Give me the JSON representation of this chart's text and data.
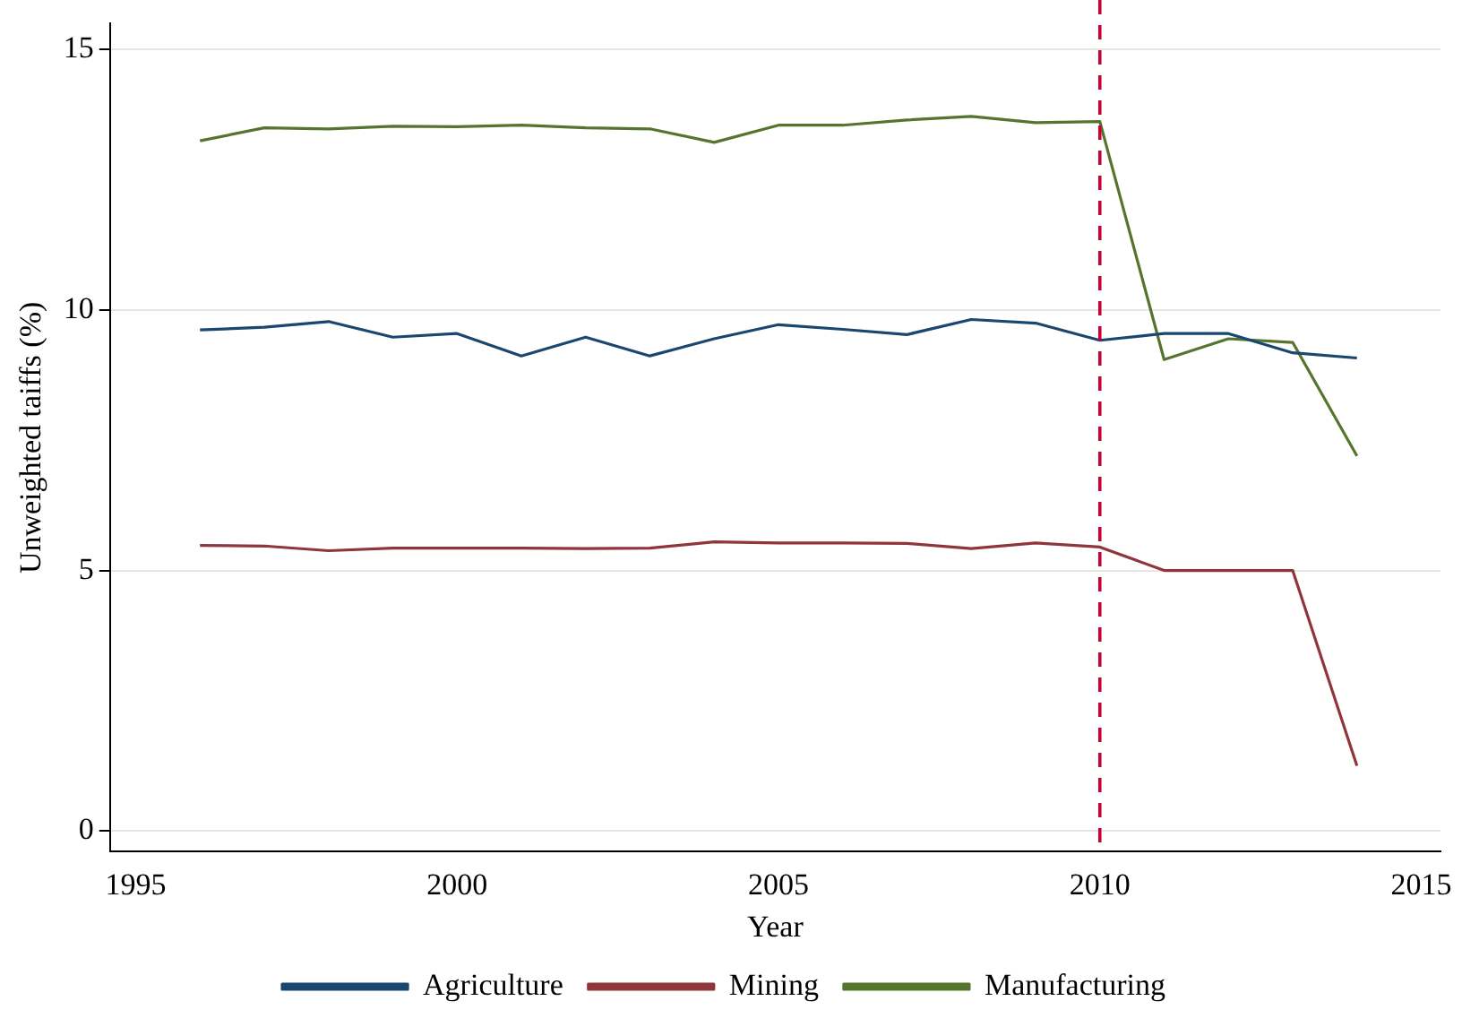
{
  "chart_data": {
    "type": "line",
    "xlabel": "Year",
    "ylabel": "Unweighted taiffs (%)",
    "x": [
      1996,
      1997,
      1998,
      1999,
      2000,
      2001,
      2002,
      2003,
      2004,
      2005,
      2006,
      2007,
      2008,
      2009,
      2010,
      2011,
      2012,
      2013,
      2014
    ],
    "series": [
      {
        "name": "Agriculture",
        "color": "#1a476f",
        "values": [
          9.62,
          9.67,
          9.78,
          9.48,
          9.55,
          9.12,
          9.48,
          9.12,
          9.45,
          9.72,
          9.63,
          9.53,
          9.82,
          9.75,
          9.42,
          9.55,
          9.55,
          9.18,
          9.08
        ]
      },
      {
        "name": "Mining",
        "color": "#90353b",
        "values": [
          5.48,
          5.47,
          5.38,
          5.43,
          5.43,
          5.43,
          5.42,
          5.43,
          5.55,
          5.53,
          5.53,
          5.52,
          5.42,
          5.53,
          5.45,
          5.0,
          5.0,
          5.0,
          1.25
        ]
      },
      {
        "name": "Manufacturing",
        "color": "#55752f",
        "values": [
          13.25,
          13.5,
          13.48,
          13.53,
          13.52,
          13.55,
          13.5,
          13.48,
          13.22,
          13.55,
          13.55,
          13.65,
          13.72,
          13.6,
          13.62,
          9.05,
          9.45,
          9.38,
          7.2
        ]
      }
    ],
    "xlim": [
      1994.6,
      2015.3
    ],
    "xticks": [
      1995,
      2000,
      2005,
      2010,
      2015
    ],
    "ylim": [
      -0.4,
      15.5
    ],
    "yticks": [
      0,
      5,
      10,
      15
    ],
    "ref_lines": [
      {
        "axis": "x",
        "value": 2010,
        "color": "#c10534",
        "line_style": "dashed"
      }
    ],
    "grid": "y",
    "legend": "bottom",
    "marker": "none",
    "line_style": "solid"
  }
}
